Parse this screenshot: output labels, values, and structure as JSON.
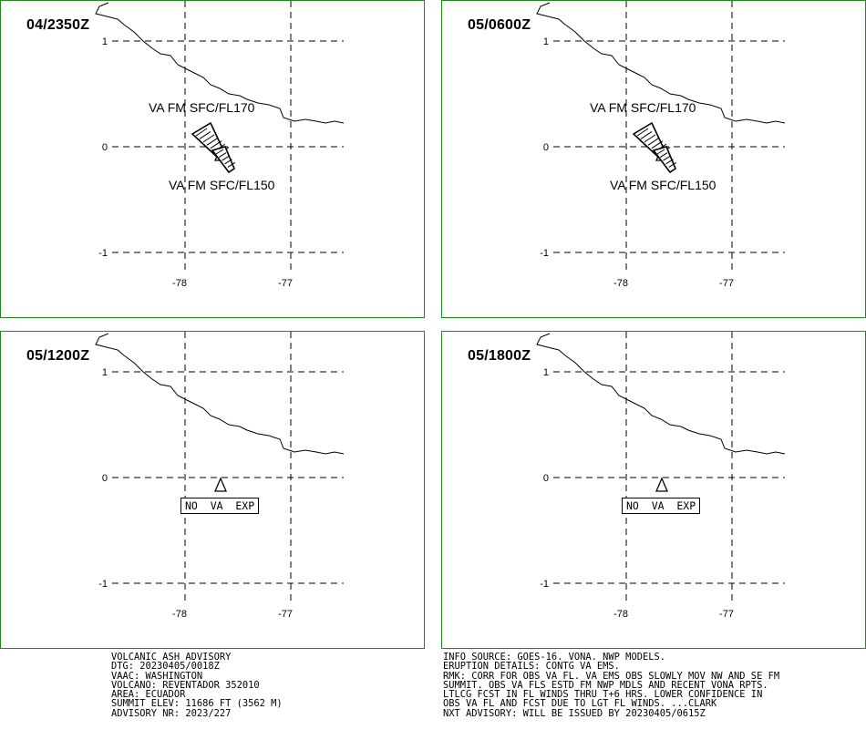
{
  "panels": [
    {
      "id": "p1",
      "time": "04/2350Z",
      "ash": true,
      "upper_label": "VA FM SFC/FL170",
      "lower_label": "VA FM SFC/FL150",
      "no_va_text": ""
    },
    {
      "id": "p2",
      "time": "05/0600Z",
      "ash": true,
      "upper_label": "VA FM SFC/FL170",
      "lower_label": "VA FM SFC/FL150",
      "no_va_text": ""
    },
    {
      "id": "p3",
      "time": "05/1200Z",
      "ash": false,
      "upper_label": "",
      "lower_label": "",
      "no_va_text": "NO VA EXP"
    },
    {
      "id": "p4",
      "time": "05/1800Z",
      "ash": false,
      "upper_label": "",
      "lower_label": "",
      "no_va_text": "NO VA EXP"
    }
  ],
  "axis": {
    "lat_ticks": [
      "1",
      "0",
      "-1"
    ],
    "lon_ticks": [
      "-78",
      "-77"
    ]
  },
  "advisory_left": [
    "VOLCANIC ASH ADVISORY",
    "DTG: 20230405/0018Z",
    "VAAC: WASHINGTON",
    "VOLCANO: REVENTADOR 352010",
    "AREA: ECUADOR",
    "SUMMIT ELEV: 11686 FT (3562 M)",
    "ADVISORY NR: 2023/227"
  ],
  "advisory_right": [
    "INFO SOURCE: GOES-16. VONA. NWP MODELS.",
    "ERUPTION DETAILS: CONTG VA EMS.",
    "RMK: CORR FOR OBS VA FL. VA EMS OBS SLOWLY MOV NW AND SE FM",
    "SUMMIT. OBS VA FLS ESTD FM NWP MDLS AND RECENT VONA RPTS.",
    "LTLCG FCST IN FL WINDS THRU T+6 HRS. LOWER CONFIDENCE IN",
    "OBS VA FL AND FCST DUE TO LGT FL WINDS. ...CLARK",
    "NXT ADVISORY: WILL BE ISSUED BY 20230405/0615Z"
  ],
  "colors": {
    "panel_border": "#1e8a1e",
    "lines": "#000000",
    "background": "#ffffff"
  },
  "icons": {
    "volcano": "volcano-triangle-icon"
  }
}
